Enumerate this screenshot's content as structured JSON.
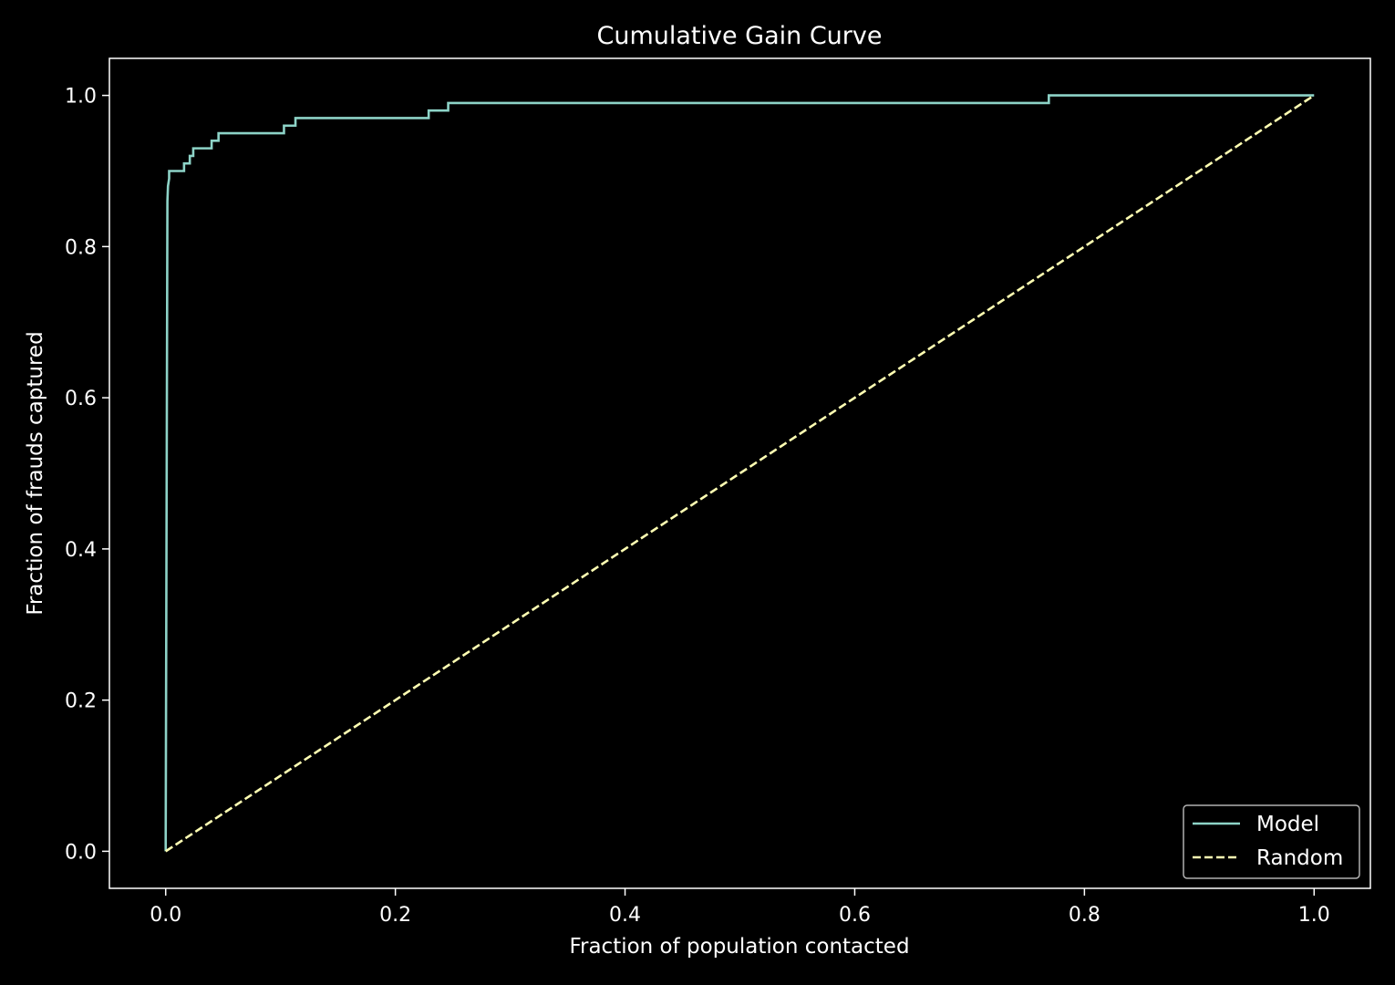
{
  "chart_data": {
    "type": "line",
    "title": "Cumulative Gain Curve",
    "xlabel": "Fraction of population contacted",
    "ylabel": "Fraction of frauds captured",
    "xlim": [
      -0.049,
      1.049
    ],
    "ylim": [
      -0.049,
      1.049
    ],
    "xticks": [
      0.0,
      0.2,
      0.4,
      0.6,
      0.8,
      1.0
    ],
    "yticks": [
      0.0,
      0.2,
      0.4,
      0.6,
      0.8,
      1.0
    ],
    "xtick_labels": [
      "0.0",
      "0.2",
      "0.4",
      "0.6",
      "0.8",
      "1.0"
    ],
    "ytick_labels": [
      "0.0",
      "0.2",
      "0.4",
      "0.6",
      "0.8",
      "1.0"
    ],
    "grid": false,
    "legend_position": "lower-right",
    "series": [
      {
        "name": "Model",
        "color": "#8dd3c7",
        "style": "solid",
        "x": [
          0.0,
          0.0,
          0.0015,
          0.002,
          0.003,
          0.003,
          0.016,
          0.016,
          0.021,
          0.021,
          0.024,
          0.024,
          0.04,
          0.04,
          0.046,
          0.046,
          0.103,
          0.103,
          0.113,
          0.113,
          0.229,
          0.229,
          0.246,
          0.246,
          0.769,
          0.769,
          1.0
        ],
        "y": [
          0.0,
          0.01,
          0.86,
          0.88,
          0.89,
          0.9,
          0.9,
          0.91,
          0.91,
          0.92,
          0.92,
          0.93,
          0.93,
          0.94,
          0.94,
          0.95,
          0.95,
          0.96,
          0.96,
          0.97,
          0.97,
          0.98,
          0.98,
          0.99,
          0.99,
          1.0,
          1.0
        ]
      },
      {
        "name": "Random",
        "color": "#ffffb3",
        "style": "dashed",
        "x": [
          0.0,
          1.0
        ],
        "y": [
          0.0,
          1.0
        ]
      }
    ]
  },
  "theme": {
    "background": "#000000",
    "foreground": "#ffffff",
    "legend_border": "#b0b0b0"
  }
}
